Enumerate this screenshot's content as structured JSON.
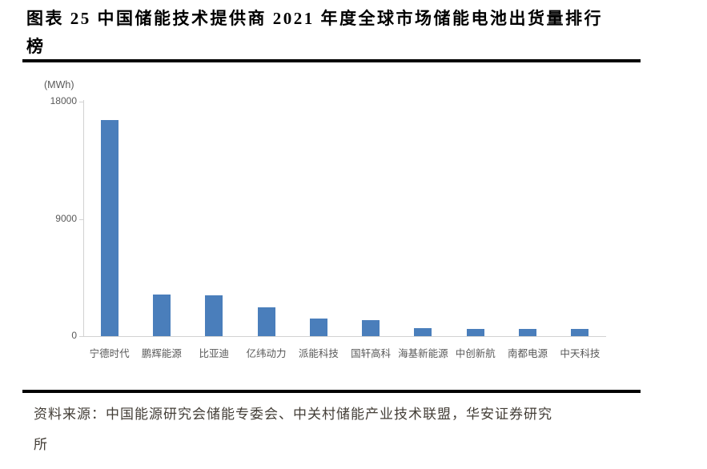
{
  "title": {
    "lines": [
      "图表 25 中国储能技术提供商 2021 年度全球市场储能电池出货量排行",
      "榜"
    ]
  },
  "source": {
    "label": "资料来源：",
    "lines": [
      "资料来源：中国能源研究会储能专委会、中关村储能产业技术联盟，华安证券研究",
      "所"
    ]
  },
  "chart_data": {
    "type": "bar",
    "title": "中国储能技术提供商2021年度全球市场储能电池出货量排行榜",
    "unit_label": "(MWh)",
    "xlabel": "",
    "ylabel": "MWh",
    "categories": [
      "宁德时代",
      "鹏辉能源",
      "比亚迪",
      "亿纬动力",
      "派能科技",
      "国轩高科",
      "海基新能源",
      "中创新航",
      "南都电源",
      "中天科技"
    ],
    "values": [
      16600,
      3200,
      3150,
      2200,
      1350,
      1200,
      620,
      580,
      560,
      540
    ],
    "yticks": [
      "0",
      "9000",
      "18000"
    ],
    "ytick_values": [
      0,
      9000,
      18000
    ],
    "ylim": [
      0,
      18000
    ],
    "grid": false,
    "legend_position": "none",
    "bar_color": "#4a7ebb",
    "axis_color": "#d2d2d2",
    "tick_label_color": "#595959",
    "title_color": "#000000",
    "source_text_color": "#433e37"
  }
}
